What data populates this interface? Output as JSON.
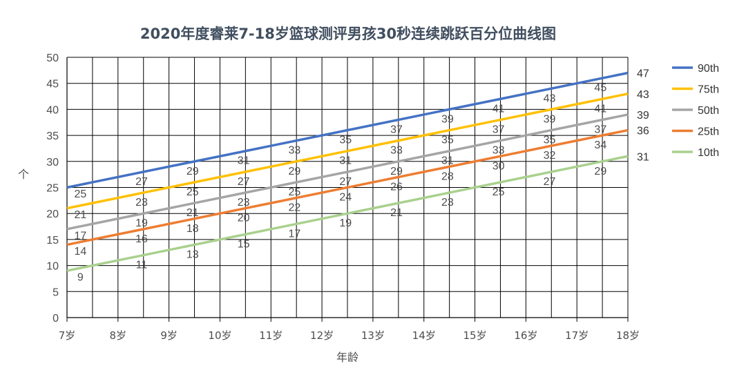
{
  "chart_data": {
    "type": "line",
    "title": "2020年度睿莱7-18岁篮球测评男孩30秒连续跳跃百分位曲线图",
    "xlabel": "年龄",
    "ylabel": "个",
    "categories": [
      "7岁",
      "8岁",
      "9岁",
      "10岁",
      "11岁",
      "12岁",
      "13岁",
      "14岁",
      "15岁",
      "16岁",
      "17岁",
      "18岁"
    ],
    "ylim": [
      0,
      50
    ],
    "yticks": [
      "0",
      "5",
      "10",
      "15",
      "20",
      "25",
      "30",
      "35",
      "40",
      "45",
      "50"
    ],
    "grid": true,
    "legend_position": "right",
    "series": [
      {
        "name": "90th",
        "color": "#4472c4",
        "start": 25,
        "end": 47,
        "end_label": "47",
        "labels": [
          {
            "x": 0.1,
            "v": "25"
          },
          {
            "x": 1.3,
            "v": "27"
          },
          {
            "x": 2.3,
            "v": "29"
          },
          {
            "x": 3.3,
            "v": "31"
          },
          {
            "x": 4.3,
            "v": "33"
          },
          {
            "x": 5.3,
            "v": "35"
          },
          {
            "x": 6.3,
            "v": "37"
          },
          {
            "x": 7.3,
            "v": "39"
          },
          {
            "x": 8.3,
            "v": "41"
          },
          {
            "x": 9.3,
            "v": "43"
          },
          {
            "x": 10.3,
            "v": "45"
          }
        ]
      },
      {
        "name": "75th",
        "color": "#ffc000",
        "start": 21,
        "end": 43,
        "end_label": "43",
        "labels": [
          {
            "x": 0.1,
            "v": "21"
          },
          {
            "x": 1.3,
            "v": "23"
          },
          {
            "x": 2.3,
            "v": "25"
          },
          {
            "x": 3.3,
            "v": "27"
          },
          {
            "x": 4.3,
            "v": "29"
          },
          {
            "x": 5.3,
            "v": "31"
          },
          {
            "x": 6.3,
            "v": "33"
          },
          {
            "x": 7.3,
            "v": "35"
          },
          {
            "x": 8.3,
            "v": "37"
          },
          {
            "x": 9.3,
            "v": "39"
          },
          {
            "x": 10.3,
            "v": "41"
          }
        ]
      },
      {
        "name": "50th",
        "color": "#a5a5a5",
        "start": 17,
        "end": 39,
        "end_label": "39",
        "labels": [
          {
            "x": 0.1,
            "v": "17"
          },
          {
            "x": 1.3,
            "v": "19"
          },
          {
            "x": 2.3,
            "v": "21"
          },
          {
            "x": 3.3,
            "v": "23"
          },
          {
            "x": 4.3,
            "v": "25"
          },
          {
            "x": 5.3,
            "v": "27"
          },
          {
            "x": 6.3,
            "v": "29"
          },
          {
            "x": 7.3,
            "v": "31"
          },
          {
            "x": 8.3,
            "v": "33"
          },
          {
            "x": 9.3,
            "v": "35"
          },
          {
            "x": 10.3,
            "v": "37"
          }
        ]
      },
      {
        "name": "25th",
        "color": "#ed7d31",
        "start": 14,
        "end": 36,
        "end_label": "36",
        "labels": [
          {
            "x": 0.1,
            "v": "14"
          },
          {
            "x": 1.3,
            "v": "16"
          },
          {
            "x": 2.3,
            "v": "18"
          },
          {
            "x": 3.3,
            "v": "20"
          },
          {
            "x": 4.3,
            "v": "22"
          },
          {
            "x": 5.3,
            "v": "24"
          },
          {
            "x": 6.3,
            "v": "26"
          },
          {
            "x": 7.3,
            "v": "28"
          },
          {
            "x": 8.3,
            "v": "30"
          },
          {
            "x": 9.3,
            "v": "32"
          },
          {
            "x": 10.3,
            "v": "34"
          }
        ]
      },
      {
        "name": "10th",
        "color": "#a9d18e",
        "start": 9,
        "end": 31,
        "end_label": "31",
        "labels": [
          {
            "x": 0.1,
            "v": "9"
          },
          {
            "x": 1.3,
            "v": "11"
          },
          {
            "x": 2.3,
            "v": "13"
          },
          {
            "x": 3.3,
            "v": "15"
          },
          {
            "x": 4.3,
            "v": "17"
          },
          {
            "x": 5.3,
            "v": "19"
          },
          {
            "x": 6.3,
            "v": "21"
          },
          {
            "x": 7.3,
            "v": "23"
          },
          {
            "x": 8.3,
            "v": "25"
          },
          {
            "x": 9.3,
            "v": "27"
          },
          {
            "x": 10.3,
            "v": "29"
          }
        ]
      }
    ]
  }
}
